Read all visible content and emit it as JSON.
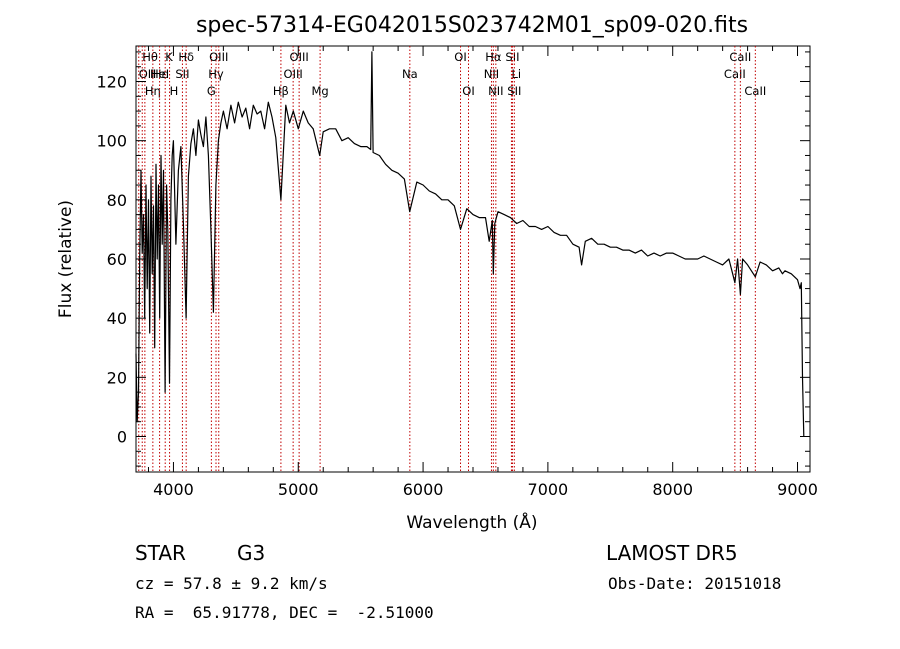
{
  "chart_data": {
    "type": "line",
    "title": "spec-57314-EG042015S023742M01_sp09-020.fits",
    "xlabel": "Wavelength (Å)",
    "ylabel": "Flux (relative)",
    "xlim": [
      3700,
      9100
    ],
    "ylim": [
      -12,
      132
    ],
    "xticks": [
      4000,
      5000,
      6000,
      7000,
      8000,
      9000
    ],
    "yticks": [
      0,
      20,
      40,
      60,
      80,
      100,
      120
    ],
    "grid": false,
    "series": [
      {
        "x": [
          3700,
          3710,
          3720,
          3730,
          3740,
          3750,
          3760,
          3770,
          3780,
          3790,
          3800,
          3810,
          3820,
          3830,
          3840,
          3850,
          3860,
          3870,
          3880,
          3890,
          3900,
          3910,
          3920,
          3933,
          3945,
          3955,
          3968,
          3980,
          3990,
          4000,
          4020,
          4040,
          4060,
          4080,
          4101,
          4120,
          4140,
          4160,
          4180,
          4200,
          4220,
          4240,
          4260,
          4280,
          4300,
          4320,
          4340,
          4360,
          4380,
          4400,
          4430,
          4460,
          4490,
          4520,
          4550,
          4580,
          4610,
          4640,
          4670,
          4700,
          4730,
          4760,
          4790,
          4820,
          4861,
          4900,
          4930,
          4960,
          5000,
          5040,
          5080,
          5120,
          5172,
          5200,
          5250,
          5300,
          5350,
          5400,
          5450,
          5500,
          5550,
          5580,
          5590,
          5600,
          5650,
          5700,
          5750,
          5800,
          5850,
          5893,
          5950,
          6000,
          6050,
          6100,
          6150,
          6200,
          6250,
          6300,
          6350,
          6400,
          6450,
          6500,
          6530,
          6555,
          6563,
          6575,
          6600,
          6650,
          6700,
          6750,
          6800,
          6850,
          6900,
          6950,
          7000,
          7050,
          7100,
          7150,
          7200,
          7250,
          7270,
          7300,
          7350,
          7400,
          7450,
          7500,
          7550,
          7600,
          7650,
          7700,
          7750,
          7800,
          7850,
          7900,
          7950,
          8000,
          8050,
          8100,
          8150,
          8200,
          8250,
          8300,
          8350,
          8400,
          8450,
          8498,
          8520,
          8542,
          8560,
          8600,
          8662,
          8700,
          8750,
          8800,
          8850,
          8880,
          8900,
          8950,
          9000,
          9020,
          9030,
          9040,
          9050
        ],
        "y": [
          28,
          5,
          15,
          60,
          90,
          62,
          75,
          40,
          85,
          50,
          80,
          35,
          88,
          55,
          78,
          30,
          92,
          60,
          85,
          40,
          95,
          65,
          90,
          15,
          85,
          70,
          18,
          80,
          95,
          100,
          65,
          90,
          98,
          72,
          40,
          88,
          99,
          104,
          95,
          107,
          102,
          98,
          108,
          95,
          70,
          42,
          85,
          100,
          106,
          110,
          104,
          112,
          106,
          113,
          108,
          111,
          104,
          112,
          109,
          110,
          104,
          113,
          108,
          101,
          80,
          112,
          106,
          110,
          104,
          110,
          106,
          104,
          95,
          103,
          104,
          104,
          100,
          101,
          99,
          98,
          98,
          97,
          130,
          96,
          95,
          92,
          90,
          89,
          87,
          76,
          86,
          85,
          83,
          82,
          80,
          80,
          78,
          70,
          77,
          75,
          74,
          74,
          66,
          73,
          55,
          72,
          76,
          75,
          74,
          72,
          73,
          71,
          71,
          70,
          71,
          69,
          68,
          68,
          65,
          64,
          58,
          66,
          67,
          65,
          65,
          64,
          64,
          63,
          63,
          62,
          63,
          61,
          62,
          61,
          62,
          62,
          61,
          60,
          60,
          60,
          61,
          60,
          59,
          58,
          60,
          52,
          60,
          48,
          60,
          58,
          54,
          59,
          58,
          56,
          57,
          55,
          56,
          55,
          53,
          50,
          52,
          20,
          0
        ]
      }
    ],
    "line_markers": [
      {
        "wave": 3722,
        "label": "OII",
        "row": 1,
        "align": "start"
      },
      {
        "wave": 3750,
        "label": "Hθ",
        "row": 0,
        "align": "start"
      },
      {
        "wave": 3771,
        "label": "Hη",
        "row": 2,
        "align": "start"
      },
      {
        "wave": 3835,
        "label": "Hε",
        "row": 1,
        "align": "start"
      },
      {
        "wave": 3889,
        "label": "HeI",
        "row": 1,
        "align": "middle"
      },
      {
        "wave": 3934,
        "label": "K",
        "row": 0,
        "align": "start"
      },
      {
        "wave": 3969,
        "label": "H",
        "row": 2,
        "align": "start"
      },
      {
        "wave": 4072,
        "label": "SII",
        "row": 1,
        "align": "middle"
      },
      {
        "wave": 4102,
        "label": "Hδ",
        "row": 0,
        "align": "middle"
      },
      {
        "wave": 4304,
        "label": "G",
        "row": 2,
        "align": "middle"
      },
      {
        "wave": 4341,
        "label": "Hγ",
        "row": 1,
        "align": "middle"
      },
      {
        "wave": 4363,
        "label": "OIII",
        "row": 0,
        "align": "middle"
      },
      {
        "wave": 4861,
        "label": "Hβ",
        "row": 2,
        "align": "middle"
      },
      {
        "wave": 4959,
        "label": "OIII",
        "row": 1,
        "align": "middle"
      },
      {
        "wave": 5007,
        "label": "OIII",
        "row": 0,
        "align": "middle"
      },
      {
        "wave": 5175,
        "label": "Mg",
        "row": 2,
        "align": "middle"
      },
      {
        "wave": 5894,
        "label": "Na",
        "row": 1,
        "align": "middle"
      },
      {
        "wave": 6300,
        "label": "OI",
        "row": 0,
        "align": "middle"
      },
      {
        "wave": 6364,
        "label": "OI",
        "row": 2,
        "align": "middle"
      },
      {
        "wave": 6548,
        "label": "NII",
        "row": 1,
        "align": "middle"
      },
      {
        "wave": 6563,
        "label": "Hα",
        "row": 0,
        "align": "middle"
      },
      {
        "wave": 6583,
        "label": "NII",
        "row": 2,
        "align": "middle"
      },
      {
        "wave": 6708,
        "label": "Li",
        "row": 1,
        "align": "start"
      },
      {
        "wave": 6716,
        "label": "SII",
        "row": 0,
        "align": "middle"
      },
      {
        "wave": 6731,
        "label": "SII",
        "row": 2,
        "align": "middle"
      },
      {
        "wave": 8498,
        "label": "CaII",
        "row": 1,
        "align": "middle"
      },
      {
        "wave": 8542,
        "label": "CaII",
        "row": 0,
        "align": "middle"
      },
      {
        "wave": 8662,
        "label": "CaII",
        "row": 2,
        "align": "middle"
      }
    ],
    "colors": {
      "spectrum": "#000000",
      "markers": "#c00000",
      "axes": "#000000"
    }
  },
  "info": {
    "class_label": "STAR",
    "subclass": "G3",
    "survey": "LAMOST DR5",
    "redshift": "cz = 57.8 ± 9.2 km/s",
    "obs_date": "Obs-Date: 20151018",
    "coords": "RA =  65.91778, DEC =  -2.51000"
  }
}
